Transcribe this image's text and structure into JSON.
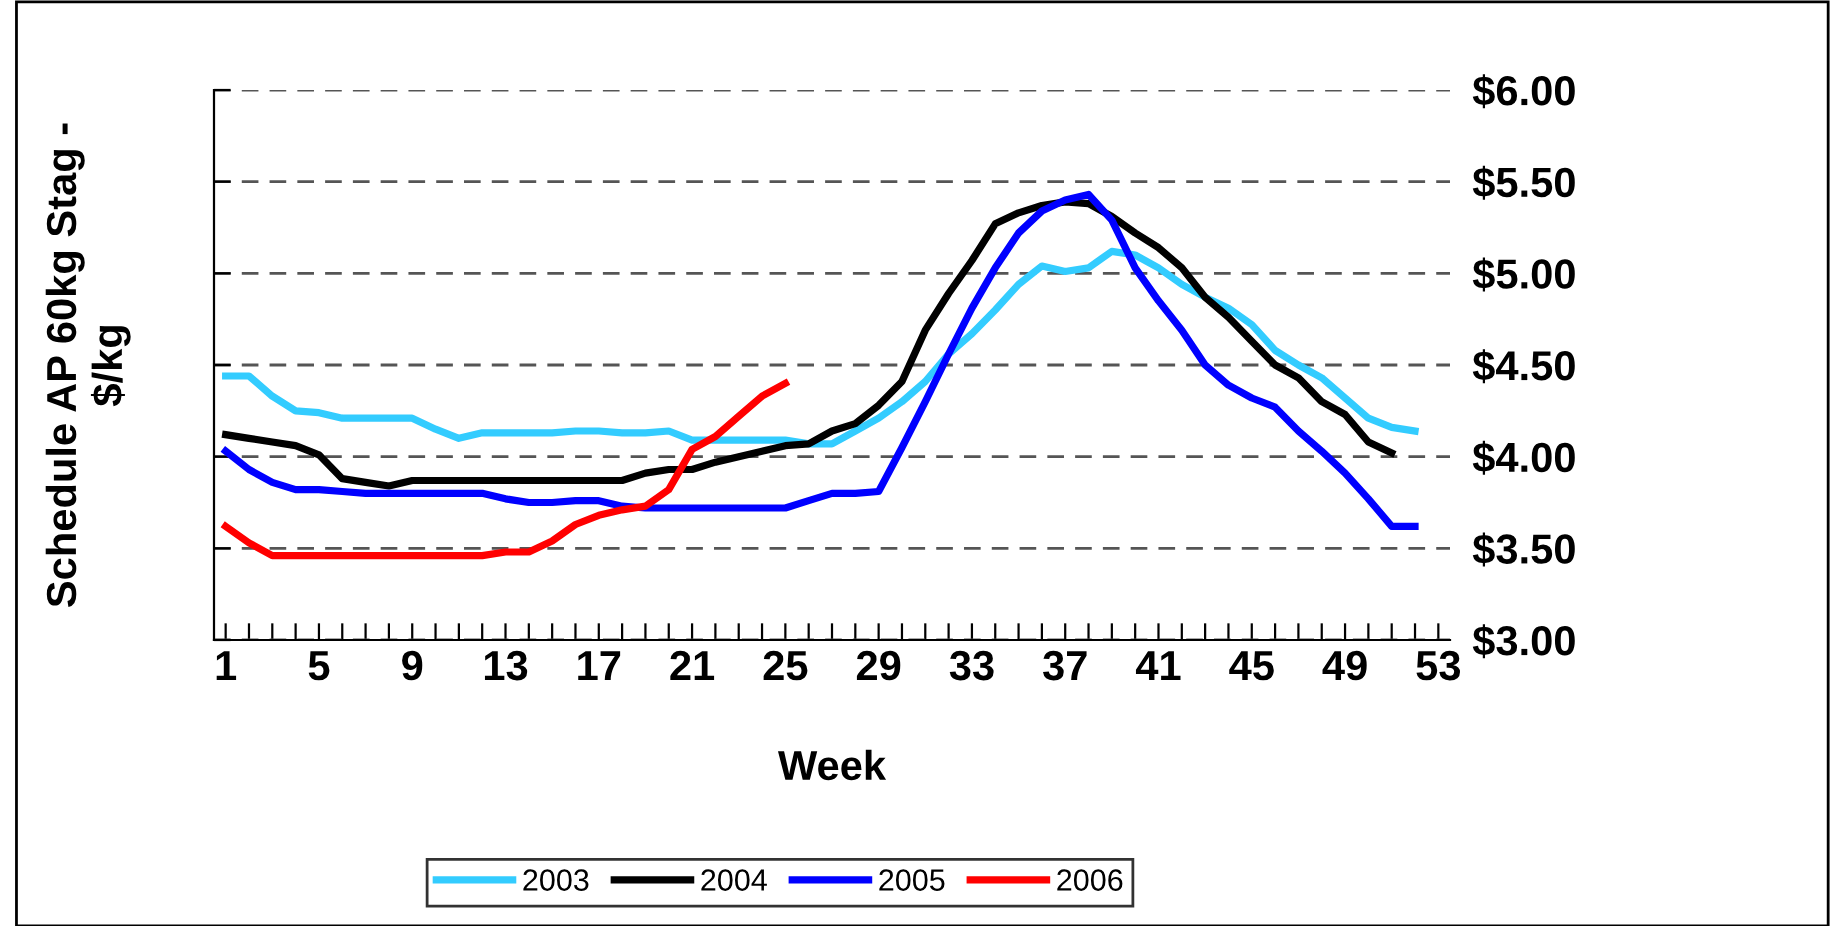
{
  "chart_data": {
    "type": "line",
    "xlabel": "Week",
    "ylabel": "Schedule AP 60kg Stag -\n$/kg",
    "xlim": [
      0.5,
      53.5
    ],
    "xticks": [
      1,
      {
        "value": 2,
        "label": null
      },
      {
        "value": 3,
        "label": null
      },
      {
        "value": 4,
        "label": null
      },
      5,
      {
        "value": 6,
        "label": null
      },
      {
        "value": 7,
        "label": null
      },
      {
        "value": 8,
        "label": null
      },
      9,
      {
        "value": 10,
        "label": null
      },
      {
        "value": 11,
        "label": null
      },
      {
        "value": 12,
        "label": null
      },
      13,
      {
        "value": 14,
        "label": null
      },
      {
        "value": 15,
        "label": null
      },
      {
        "value": 16,
        "label": null
      },
      17,
      {
        "value": 18,
        "label": null
      },
      {
        "value": 19,
        "label": null
      },
      {
        "value": 20,
        "label": null
      },
      21,
      {
        "value": 22,
        "label": null
      },
      {
        "value": 23,
        "label": null
      },
      {
        "value": 24,
        "label": null
      },
      25,
      {
        "value": 26,
        "label": null
      },
      {
        "value": 27,
        "label": null
      },
      {
        "value": 28,
        "label": null
      },
      29,
      {
        "value": 30,
        "label": null
      },
      {
        "value": 31,
        "label": null
      },
      {
        "value": 32,
        "label": null
      },
      33,
      {
        "value": 34,
        "label": null
      },
      {
        "value": 35,
        "label": null
      },
      {
        "value": 36,
        "label": null
      },
      37,
      {
        "value": 38,
        "label": null
      },
      {
        "value": 39,
        "label": null
      },
      {
        "value": 40,
        "label": null
      },
      41,
      {
        "value": 42,
        "label": null
      },
      {
        "value": 43,
        "label": null
      },
      {
        "value": 44,
        "label": null
      },
      45,
      {
        "value": 46,
        "label": null
      },
      {
        "value": 47,
        "label": null
      },
      {
        "value": 48,
        "label": null
      },
      49,
      {
        "value": 50,
        "label": null
      },
      {
        "value": 51,
        "label": null
      },
      {
        "value": 52,
        "label": null
      },
      53
    ],
    "ylim": [
      3.0,
      6.0
    ],
    "yticks": [
      {
        "value": 3.0,
        "label": "$3.00"
      },
      {
        "value": 3.5,
        "label": "$3.50"
      },
      {
        "value": 4.0,
        "label": "$4.00"
      },
      {
        "value": 4.5,
        "label": "$4.50"
      },
      {
        "value": 5.0,
        "label": "$5.00"
      },
      {
        "value": 5.5,
        "label": "$5.50"
      },
      {
        "value": 6.0,
        "label": "$6.00"
      }
    ],
    "grid": "y",
    "legend": "bottom",
    "marker": "none",
    "line_style": "solid",
    "series": [
      {
        "name": "2003",
        "color": "#33ccff",
        "x": [
          1,
          2,
          3,
          4,
          5,
          6,
          7,
          8,
          9,
          10,
          11,
          12,
          13,
          14,
          15,
          16,
          17,
          18,
          19,
          20,
          21,
          22,
          23,
          24,
          25,
          26,
          27,
          28,
          29,
          30,
          31,
          32,
          33,
          34,
          35,
          36,
          37,
          38,
          39,
          40,
          41,
          42,
          43,
          44,
          45,
          46,
          47,
          48,
          49,
          50,
          51,
          52
        ],
        "values": [
          4.44,
          4.44,
          4.33,
          4.25,
          4.24,
          4.21,
          4.21,
          4.21,
          4.21,
          4.15,
          4.1,
          4.13,
          4.13,
          4.13,
          4.13,
          4.14,
          4.14,
          4.13,
          4.13,
          4.14,
          4.09,
          4.09,
          4.09,
          4.09,
          4.09,
          4.07,
          4.07,
          4.14,
          4.21,
          4.3,
          4.41,
          4.56,
          4.67,
          4.8,
          4.94,
          5.04,
          5.01,
          5.03,
          5.12,
          5.1,
          5.03,
          4.94,
          4.87,
          4.81,
          4.72,
          4.58,
          4.5,
          4.43,
          4.32,
          4.21,
          4.16,
          4.14
        ]
      },
      {
        "name": "2004",
        "color": "#000000",
        "x": [
          1,
          2,
          3,
          4,
          5,
          6,
          7,
          8,
          9,
          10,
          11,
          12,
          13,
          14,
          15,
          16,
          17,
          18,
          19,
          20,
          21,
          22,
          23,
          24,
          25,
          26,
          27,
          28,
          29,
          30,
          31,
          32,
          33,
          34,
          35,
          36,
          37,
          38,
          39,
          40,
          41,
          42,
          43,
          44,
          45,
          46,
          47,
          48,
          49,
          50,
          51
        ],
        "values": [
          4.12,
          4.1,
          4.08,
          4.06,
          4.01,
          3.88,
          3.86,
          3.84,
          3.87,
          3.87,
          3.87,
          3.87,
          3.87,
          3.87,
          3.87,
          3.87,
          3.87,
          3.87,
          3.91,
          3.93,
          3.93,
          3.97,
          4.0,
          4.03,
          4.06,
          4.07,
          4.14,
          4.18,
          4.28,
          4.41,
          4.69,
          4.89,
          5.07,
          5.27,
          5.33,
          5.37,
          5.39,
          5.38,
          5.31,
          5.22,
          5.14,
          5.03,
          4.87,
          4.76,
          4.63,
          4.5,
          4.43,
          4.3,
          4.23,
          4.08,
          4.02
        ]
      },
      {
        "name": "2005",
        "color": "#0000ff",
        "x": [
          1,
          2,
          3,
          4,
          5,
          6,
          7,
          8,
          9,
          10,
          11,
          12,
          13,
          14,
          15,
          16,
          17,
          18,
          19,
          20,
          21,
          22,
          23,
          24,
          25,
          26,
          27,
          28,
          29,
          30,
          31,
          32,
          33,
          34,
          35,
          36,
          37,
          38,
          39,
          40,
          41,
          42,
          43,
          44,
          45,
          46,
          47,
          48,
          49,
          50,
          51,
          52
        ],
        "values": [
          4.03,
          3.93,
          3.86,
          3.82,
          3.82,
          3.81,
          3.8,
          3.8,
          3.8,
          3.8,
          3.8,
          3.8,
          3.77,
          3.75,
          3.75,
          3.76,
          3.76,
          3.73,
          3.72,
          3.72,
          3.72,
          3.72,
          3.72,
          3.72,
          3.72,
          3.76,
          3.8,
          3.8,
          3.81,
          4.05,
          4.3,
          4.56,
          4.81,
          5.03,
          5.22,
          5.34,
          5.4,
          5.43,
          5.29,
          5.03,
          4.85,
          4.69,
          4.5,
          4.39,
          4.32,
          4.27,
          4.14,
          4.03,
          3.91,
          3.77,
          3.62,
          3.62
        ]
      },
      {
        "name": "2006",
        "color": "#ff0000",
        "x": [
          1,
          2,
          3,
          4,
          5,
          6,
          7,
          8,
          9,
          10,
          11,
          12,
          13,
          14,
          15,
          16,
          17,
          18,
          19,
          20,
          21,
          22,
          23,
          24,
          25
        ],
        "values": [
          3.62,
          3.53,
          3.46,
          3.46,
          3.46,
          3.46,
          3.46,
          3.46,
          3.46,
          3.46,
          3.46,
          3.46,
          3.48,
          3.48,
          3.54,
          3.63,
          3.68,
          3.71,
          3.73,
          3.82,
          4.04,
          4.11,
          4.22,
          4.33,
          4.4
        ]
      }
    ]
  }
}
